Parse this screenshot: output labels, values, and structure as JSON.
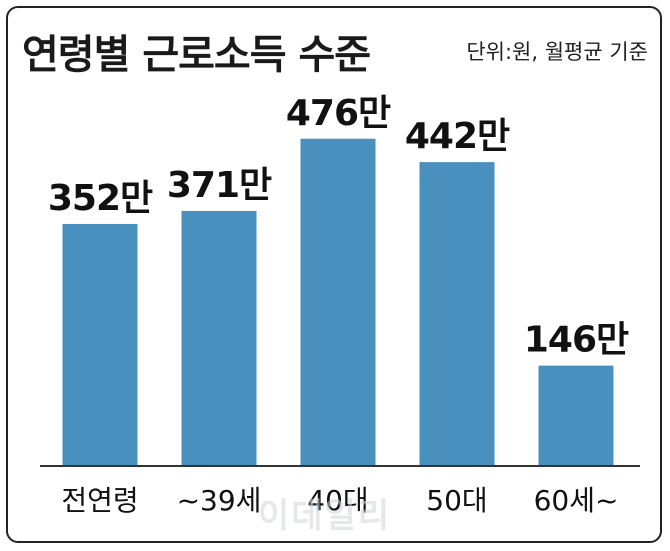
{
  "title": "연령별 근로소득 수준",
  "subtitle": "단위:원, 월평균 기준",
  "watermark": "이데일리",
  "chart_data": {
    "type": "bar",
    "categories": [
      "전연령",
      "~39세",
      "40대",
      "50대",
      "60세~"
    ],
    "values": [
      352,
      371,
      476,
      442,
      146
    ],
    "data_labels": [
      "352만",
      "371만",
      "476만",
      "442만",
      "146만"
    ],
    "unit": "만원",
    "ylim": [
      0,
      500
    ],
    "grid": false,
    "bar_color": "#4a90bf",
    "axis_color": "#333333"
  }
}
